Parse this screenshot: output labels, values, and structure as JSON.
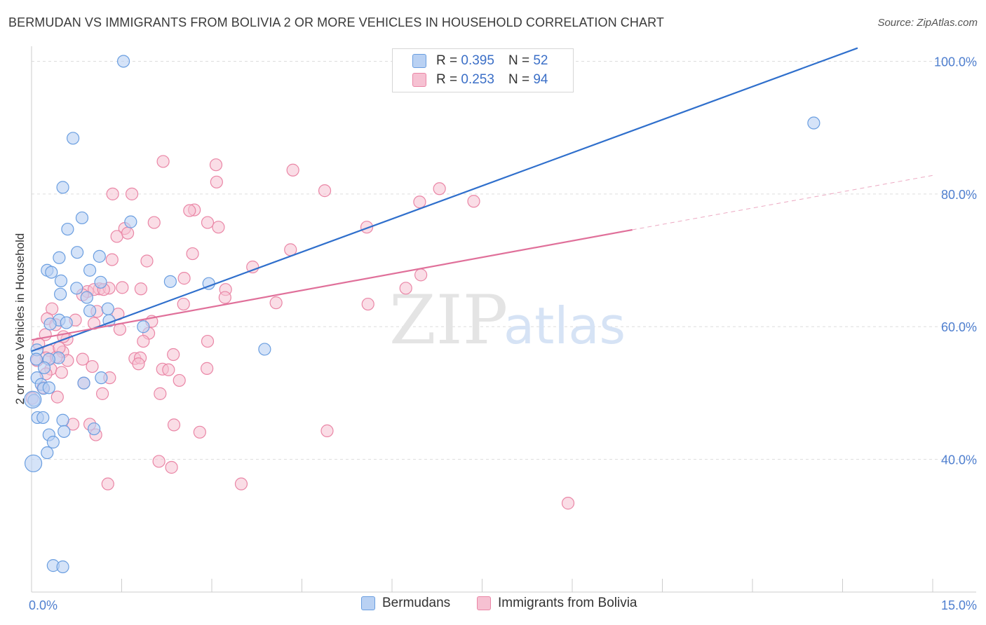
{
  "title": "BERMUDAN VS IMMIGRANTS FROM BOLIVIA 2 OR MORE VEHICLES IN HOUSEHOLD CORRELATION CHART",
  "source": "Source: ZipAtlas.com",
  "watermark": {
    "zip": "ZIP",
    "atlas": "atlas"
  },
  "legend": {
    "rows": [
      {
        "r_label": "R =",
        "r_value": "0.395",
        "n_label": "N =",
        "n_value": "52"
      },
      {
        "r_label": "R =",
        "r_value": "0.253",
        "n_label": "N =",
        "n_value": "94"
      }
    ]
  },
  "bottom_legend": {
    "series1": "Bermudans",
    "series2": "Immigrants from Bolivia"
  },
  "colors": {
    "blue": "#6a9ee0",
    "blue_fill": "#b9d1f3",
    "blue_line": "#2f6fcc",
    "pink": "#ea86a6",
    "pink_fill": "#f6c1d2",
    "pink_line": "#e0709a",
    "tick_text": "#4f7fcf"
  },
  "chart_data": {
    "type": "scatter",
    "xlabel": "",
    "ylabel": "2 or more Vehicles in Household",
    "xlim": [
      0,
      15
    ],
    "ylim": [
      20,
      101
    ],
    "x_tick_labels": [
      {
        "value": 0,
        "label": "0.0%"
      },
      {
        "value": 15,
        "label": "15.0%"
      }
    ],
    "y_tick_labels": [
      {
        "value": 40,
        "label": "40.0%"
      },
      {
        "value": 60,
        "label": "60.0%"
      },
      {
        "value": 80,
        "label": "80.0%"
      },
      {
        "value": 100,
        "label": "100.0%"
      }
    ],
    "grid": true,
    "series": [
      {
        "name": "Bermudans",
        "points": [
          [
            1.53,
            100.0
          ],
          [
            0.69,
            88.4
          ],
          [
            0.52,
            81.0
          ],
          [
            0.84,
            76.4
          ],
          [
            0.6,
            74.7
          ],
          [
            1.65,
            75.8
          ],
          [
            0.76,
            71.2
          ],
          [
            1.13,
            70.6
          ],
          [
            0.46,
            70.4
          ],
          [
            0.26,
            68.5
          ],
          [
            0.33,
            68.2
          ],
          [
            0.97,
            68.5
          ],
          [
            0.49,
            66.9
          ],
          [
            1.15,
            66.7
          ],
          [
            2.31,
            66.8
          ],
          [
            2.95,
            66.5
          ],
          [
            0.75,
            65.8
          ],
          [
            0.48,
            64.9
          ],
          [
            0.92,
            64.4
          ],
          [
            0.97,
            62.4
          ],
          [
            1.27,
            62.7
          ],
          [
            0.46,
            61.0
          ],
          [
            0.31,
            60.4
          ],
          [
            0.58,
            60.6
          ],
          [
            1.29,
            60.9
          ],
          [
            1.86,
            60.0
          ],
          [
            3.88,
            56.6
          ],
          [
            0.09,
            56.5
          ],
          [
            0.08,
            55.1
          ],
          [
            0.45,
            55.3
          ],
          [
            0.29,
            55.1
          ],
          [
            0.21,
            53.8
          ],
          [
            1.16,
            52.3
          ],
          [
            0.87,
            51.5
          ],
          [
            0.09,
            52.3
          ],
          [
            0.16,
            51.3
          ],
          [
            0.2,
            50.7
          ],
          [
            0.29,
            50.8
          ],
          [
            0.04,
            48.9
          ],
          [
            0.1,
            46.3
          ],
          [
            0.19,
            46.3
          ],
          [
            0.52,
            45.9
          ],
          [
            0.54,
            44.2
          ],
          [
            1.04,
            44.6
          ],
          [
            0.29,
            43.7
          ],
          [
            0.36,
            42.6
          ],
          [
            0.26,
            41.0
          ],
          [
            0.03,
            39.4
          ],
          [
            0.36,
            24.0
          ],
          [
            0.52,
            23.8
          ],
          [
            13.02,
            90.7
          ],
          [
            0.02,
            49.0
          ]
        ]
      },
      {
        "name": "Immigrants from Bolivia",
        "points": [
          [
            2.19,
            84.9
          ],
          [
            3.07,
            84.4
          ],
          [
            4.35,
            83.6
          ],
          [
            3.08,
            81.8
          ],
          [
            4.88,
            80.5
          ],
          [
            6.79,
            80.8
          ],
          [
            1.35,
            80.0
          ],
          [
            1.67,
            80.0
          ],
          [
            6.46,
            78.8
          ],
          [
            7.36,
            78.9
          ],
          [
            2.71,
            77.6
          ],
          [
            2.63,
            77.5
          ],
          [
            2.04,
            75.7
          ],
          [
            2.93,
            75.7
          ],
          [
            3.11,
            75.0
          ],
          [
            1.55,
            74.8
          ],
          [
            5.58,
            75.0
          ],
          [
            1.42,
            73.6
          ],
          [
            1.6,
            74.1
          ],
          [
            2.68,
            71.0
          ],
          [
            4.31,
            71.6
          ],
          [
            1.34,
            70.1
          ],
          [
            1.92,
            69.9
          ],
          [
            3.68,
            69.0
          ],
          [
            2.54,
            67.3
          ],
          [
            6.48,
            67.8
          ],
          [
            1.13,
            65.7
          ],
          [
            0.93,
            65.3
          ],
          [
            1.04,
            65.6
          ],
          [
            1.29,
            65.8
          ],
          [
            1.51,
            65.9
          ],
          [
            1.82,
            65.7
          ],
          [
            0.85,
            64.8
          ],
          [
            3.23,
            65.6
          ],
          [
            6.23,
            65.8
          ],
          [
            3.22,
            64.4
          ],
          [
            4.07,
            63.6
          ],
          [
            2.53,
            63.4
          ],
          [
            5.6,
            63.4
          ],
          [
            0.34,
            62.7
          ],
          [
            1.09,
            62.3
          ],
          [
            1.44,
            61.9
          ],
          [
            0.26,
            61.2
          ],
          [
            0.73,
            61.0
          ],
          [
            0.4,
            60.3
          ],
          [
            1.04,
            60.5
          ],
          [
            1.47,
            59.6
          ],
          [
            1.95,
            59.0
          ],
          [
            0.23,
            58.8
          ],
          [
            0.59,
            58.1
          ],
          [
            1.86,
            57.8
          ],
          [
            2.93,
            57.8
          ],
          [
            0.12,
            57.4
          ],
          [
            0.29,
            56.4
          ],
          [
            0.52,
            56.2
          ],
          [
            0.24,
            55.3
          ],
          [
            0.41,
            55.4
          ],
          [
            0.6,
            54.9
          ],
          [
            0.85,
            55.1
          ],
          [
            1.72,
            55.2
          ],
          [
            1.81,
            55.3
          ],
          [
            2.36,
            55.8
          ],
          [
            1.01,
            54.0
          ],
          [
            1.78,
            54.4
          ],
          [
            0.32,
            53.6
          ],
          [
            2.18,
            53.6
          ],
          [
            2.92,
            53.7
          ],
          [
            0.5,
            53.1
          ],
          [
            0.24,
            52.9
          ],
          [
            1.3,
            52.3
          ],
          [
            0.87,
            51.5
          ],
          [
            2.46,
            51.9
          ],
          [
            0.19,
            50.8
          ],
          [
            0.43,
            49.4
          ],
          [
            1.18,
            49.9
          ],
          [
            2.14,
            49.9
          ],
          [
            0.01,
            49.2
          ],
          [
            0.69,
            45.3
          ],
          [
            0.97,
            45.3
          ],
          [
            2.37,
            45.2
          ],
          [
            1.07,
            43.7
          ],
          [
            2.8,
            44.1
          ],
          [
            4.92,
            44.3
          ],
          [
            2.12,
            39.7
          ],
          [
            2.33,
            38.8
          ],
          [
            1.27,
            36.3
          ],
          [
            3.49,
            36.3
          ],
          [
            8.93,
            33.4
          ],
          [
            0.09,
            54.9
          ],
          [
            0.46,
            56.8
          ],
          [
            2.28,
            53.5
          ],
          [
            1.2,
            65.6
          ],
          [
            0.53,
            58.5
          ],
          [
            2.0,
            60.8
          ]
        ]
      }
    ],
    "trend_lines": [
      {
        "name": "Bermudans",
        "x": [
          0.0,
          13.75
        ],
        "y": [
          56.3,
          102.0
        ]
      },
      {
        "name": "Immigrants from Bolivia",
        "x": [
          0.0,
          10.0
        ],
        "y": [
          58.0,
          74.6
        ],
        "dashed_extension": {
          "x": [
            10.0,
            15.0
          ],
          "y": [
            74.6,
            82.8
          ]
        }
      }
    ]
  }
}
